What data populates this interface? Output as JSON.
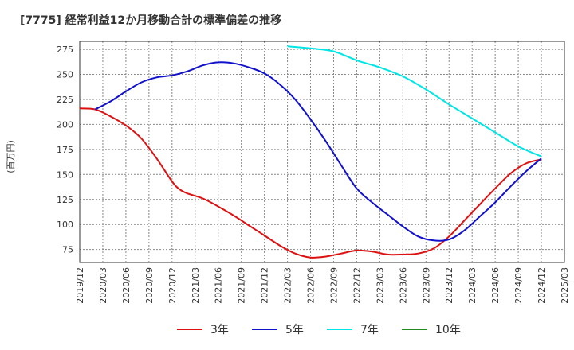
{
  "chart_data": {
    "type": "line",
    "title": "[7775]  経常利益12か月移動合計の標準偏差の推移",
    "ylabel": "(百万円)",
    "xlabel": "",
    "ylim": [
      62,
      283
    ],
    "yticks": [
      75,
      100,
      125,
      150,
      175,
      200,
      225,
      250,
      275
    ],
    "xlim": [
      "2019-12",
      "2025-03"
    ],
    "xticks": [
      "2019/12",
      "2020/03",
      "2020/06",
      "2020/09",
      "2020/12",
      "2021/03",
      "2021/06",
      "2021/09",
      "2021/12",
      "2022/03",
      "2022/06",
      "2022/09",
      "2022/12",
      "2023/03",
      "2023/06",
      "2023/09",
      "2023/12",
      "2024/03",
      "2024/06",
      "2024/09",
      "2024/12",
      "2025/03"
    ],
    "grid": true,
    "legend_position": "bottom",
    "series": [
      {
        "name": "3年",
        "color": "#dd1111",
        "points": [
          [
            "2019-12",
            216
          ],
          [
            "2020-02",
            215
          ],
          [
            "2020-04",
            208
          ],
          [
            "2020-06",
            199
          ],
          [
            "2020-08",
            186
          ],
          [
            "2020-10",
            166
          ],
          [
            "2020-12",
            143
          ],
          [
            "2021-01",
            135
          ],
          [
            "2021-02",
            131
          ],
          [
            "2021-04",
            126
          ],
          [
            "2021-06",
            118
          ],
          [
            "2021-08",
            109
          ],
          [
            "2021-10",
            99
          ],
          [
            "2021-12",
            89
          ],
          [
            "2022-02",
            79
          ],
          [
            "2022-04",
            71
          ],
          [
            "2022-06",
            67
          ],
          [
            "2022-08",
            68
          ],
          [
            "2022-10",
            71
          ],
          [
            "2022-12",
            74
          ],
          [
            "2023-02",
            73
          ],
          [
            "2023-04",
            70
          ],
          [
            "2023-06",
            70
          ],
          [
            "2023-08",
            71
          ],
          [
            "2023-10",
            76
          ],
          [
            "2023-12",
            88
          ],
          [
            "2024-02",
            104
          ],
          [
            "2024-04",
            120
          ],
          [
            "2024-06",
            136
          ],
          [
            "2024-08",
            151
          ],
          [
            "2024-10",
            161
          ],
          [
            "2024-12",
            165
          ]
        ]
      },
      {
        "name": "5年",
        "color": "#1111cc",
        "points": [
          [
            "2020-02",
            215
          ],
          [
            "2020-04",
            223
          ],
          [
            "2020-06",
            233
          ],
          [
            "2020-08",
            242
          ],
          [
            "2020-10",
            247
          ],
          [
            "2020-12",
            249
          ],
          [
            "2021-02",
            253
          ],
          [
            "2021-04",
            259
          ],
          [
            "2021-06",
            262
          ],
          [
            "2021-08",
            261
          ],
          [
            "2021-10",
            257
          ],
          [
            "2021-12",
            251
          ],
          [
            "2022-02",
            240
          ],
          [
            "2022-04",
            225
          ],
          [
            "2022-06",
            205
          ],
          [
            "2022-08",
            183
          ],
          [
            "2022-10",
            159
          ],
          [
            "2022-12",
            136
          ],
          [
            "2023-02",
            122
          ],
          [
            "2023-04",
            110
          ],
          [
            "2023-06",
            98
          ],
          [
            "2023-08",
            88
          ],
          [
            "2023-10",
            84
          ],
          [
            "2023-12",
            85
          ],
          [
            "2024-02",
            94
          ],
          [
            "2024-04",
            108
          ],
          [
            "2024-06",
            122
          ],
          [
            "2024-08",
            138
          ],
          [
            "2024-10",
            153
          ],
          [
            "2024-12",
            166
          ]
        ]
      },
      {
        "name": "7年",
        "color": "#00e5e5",
        "points": [
          [
            "2022-03",
            278
          ],
          [
            "2022-06",
            276
          ],
          [
            "2022-09",
            273
          ],
          [
            "2022-12",
            264
          ],
          [
            "2023-03",
            257
          ],
          [
            "2023-06",
            248
          ],
          [
            "2023-09",
            235
          ],
          [
            "2023-12",
            220
          ],
          [
            "2024-03",
            206
          ],
          [
            "2024-06",
            192
          ],
          [
            "2024-09",
            178
          ],
          [
            "2024-12",
            168
          ]
        ]
      },
      {
        "name": "10年",
        "color": "#228822",
        "points": []
      }
    ]
  }
}
